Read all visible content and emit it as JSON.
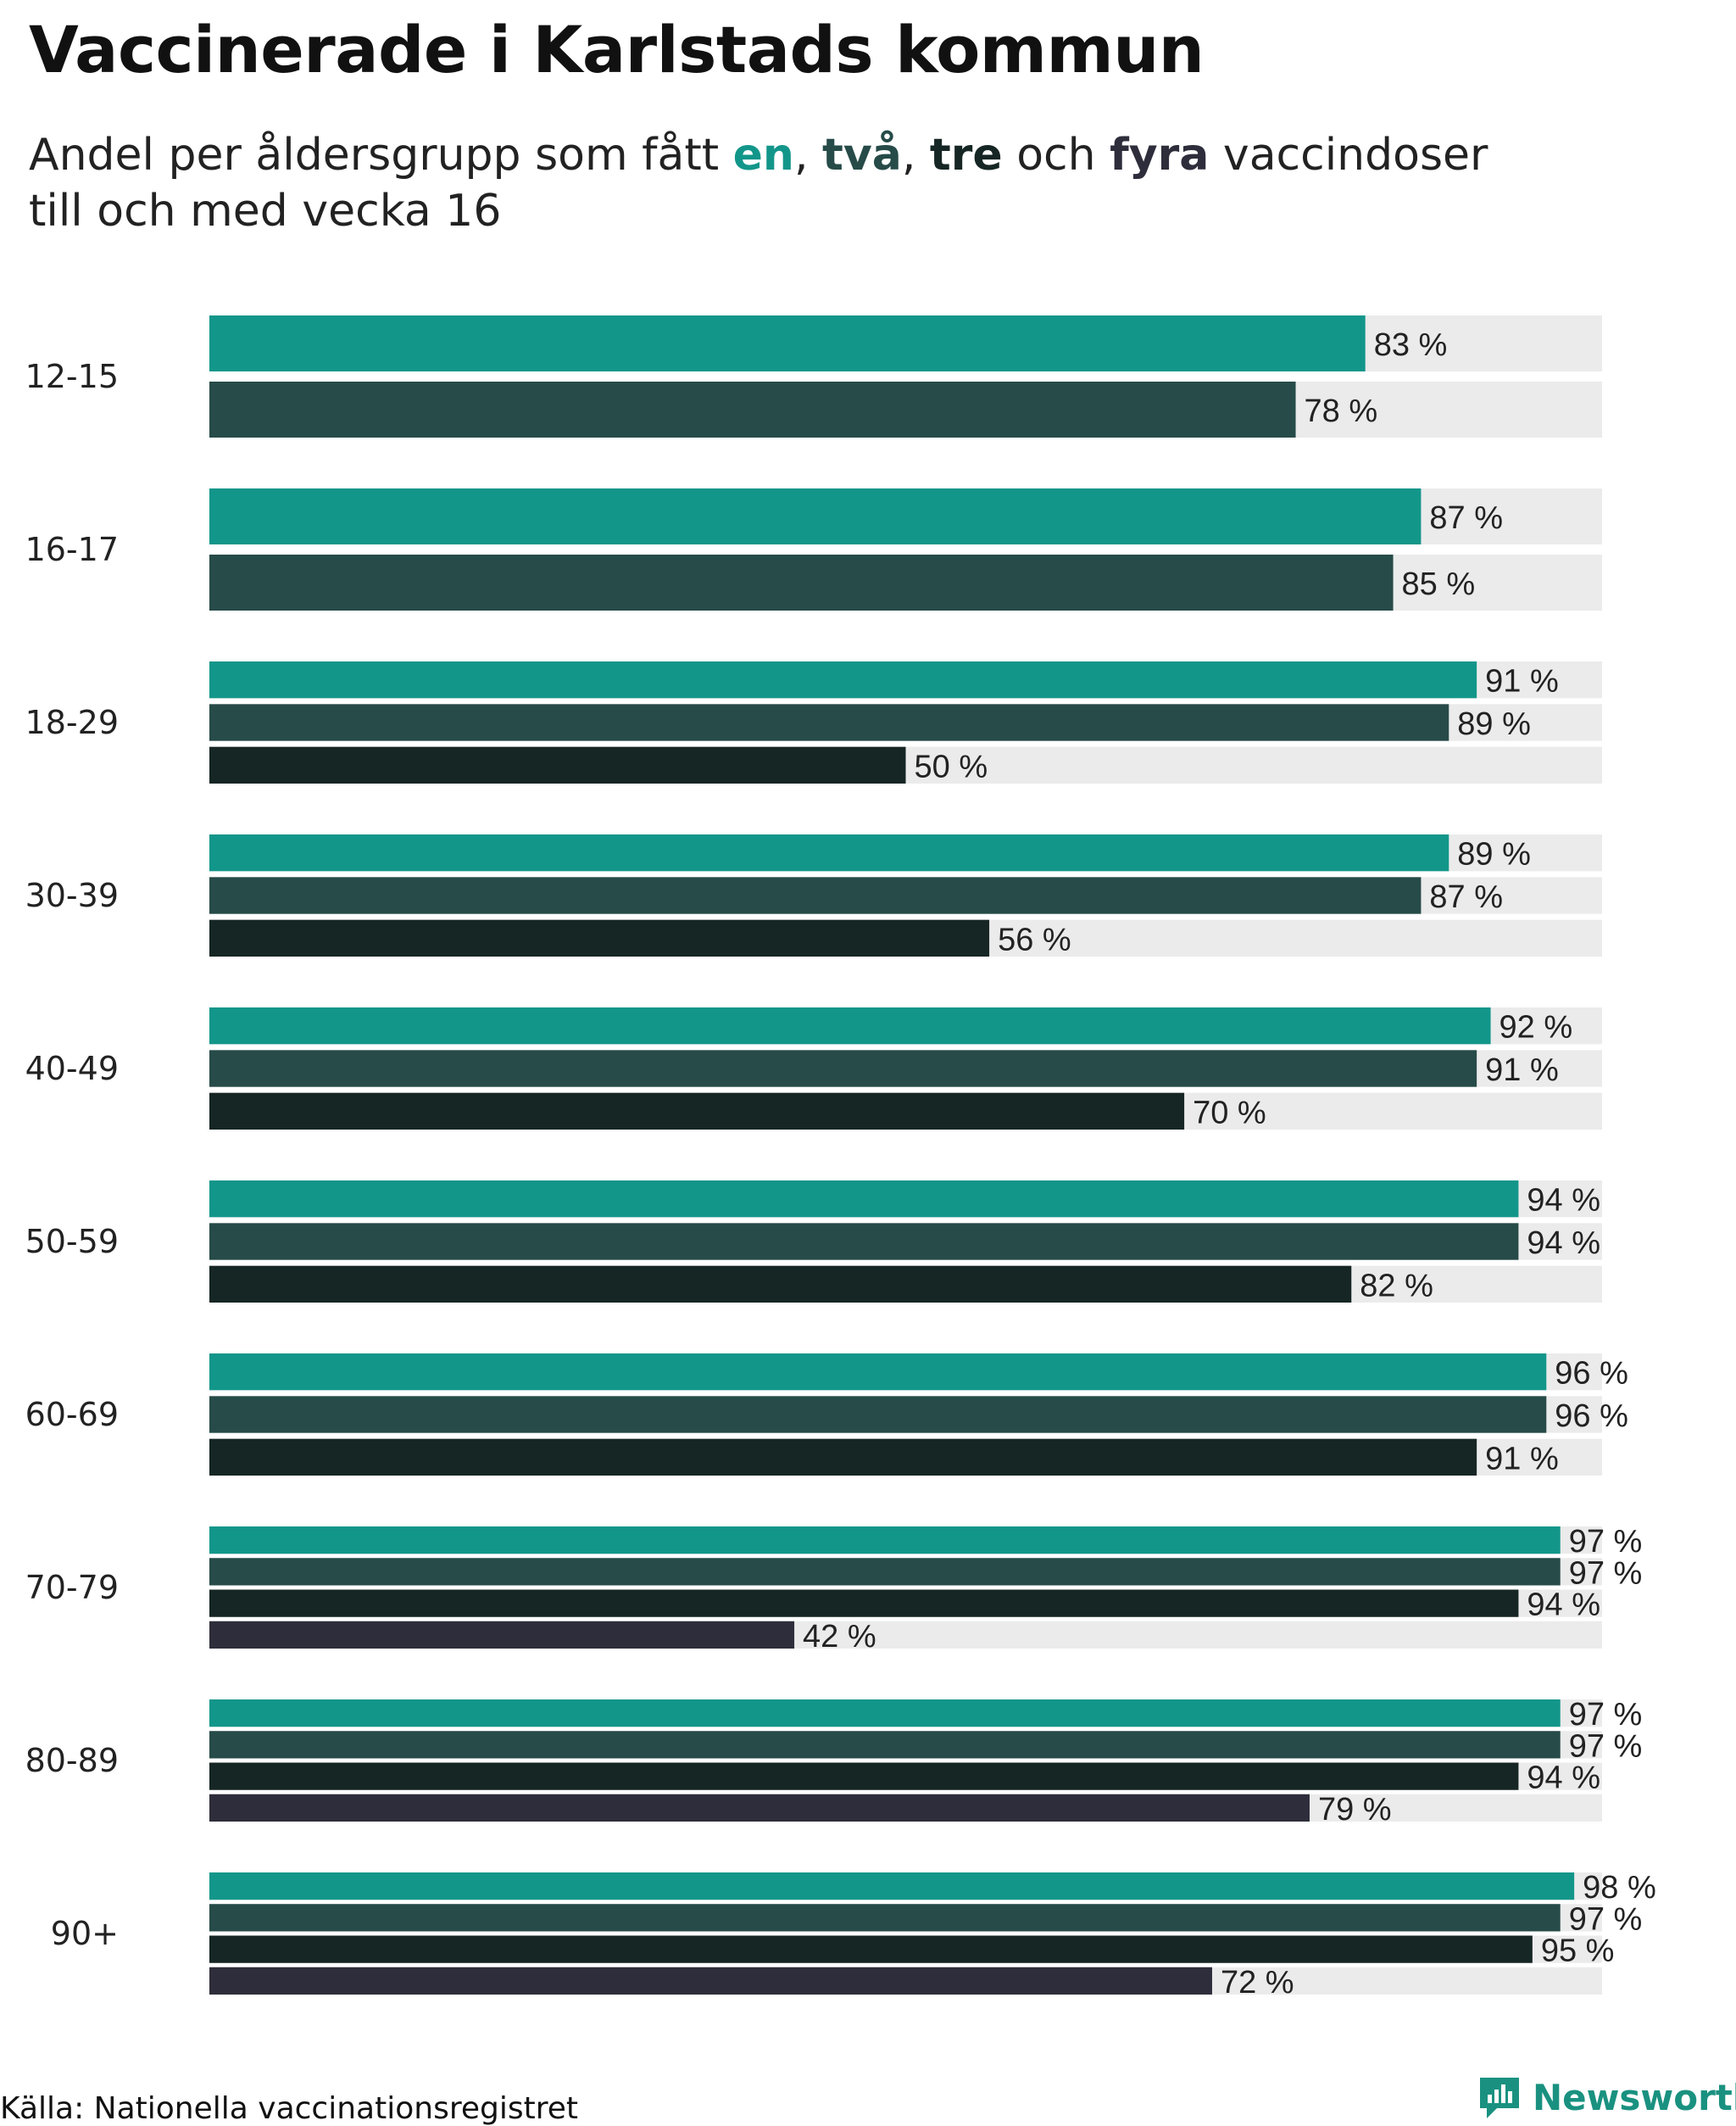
{
  "title": "Vaccinerade i Karlstads kommun",
  "subtitle": {
    "prefix": "Andel per åldersgrupp som fått ",
    "dose1": "en",
    "sep1": ", ",
    "dose2": "två",
    "sep2": ", ",
    "dose3": "tre",
    "middle": " och ",
    "dose4": "fyra",
    "suffix": " vaccindoser",
    "line2": "till och med vecka 16"
  },
  "source": "Källa: Nationella vaccinationsregistret",
  "logo": {
    "text": "Newsworthy",
    "icon": "newsworthy-logo-icon"
  },
  "colors": {
    "dose1": "#13968a",
    "dose2": "#264b48",
    "dose3": "#162624",
    "dose4": "#2e2d3b",
    "track": "#ebebeb",
    "brand": "#1a9180"
  },
  "chart_data": {
    "type": "bar",
    "orientation": "horizontal",
    "xlim": [
      0,
      100
    ],
    "unit": "%",
    "categories": [
      "12-15",
      "16-17",
      "18-29",
      "30-39",
      "40-49",
      "50-59",
      "60-69",
      "70-79",
      "80-89",
      "90+"
    ],
    "series": [
      {
        "name": "en",
        "values": [
          83,
          87,
          91,
          89,
          92,
          94,
          96,
          97,
          97,
          98
        ]
      },
      {
        "name": "två",
        "values": [
          78,
          85,
          89,
          87,
          91,
          94,
          96,
          97,
          97,
          97
        ]
      },
      {
        "name": "tre",
        "values": [
          null,
          null,
          50,
          56,
          70,
          82,
          91,
          94,
          94,
          95
        ]
      },
      {
        "name": "fyra",
        "values": [
          null,
          null,
          null,
          null,
          null,
          null,
          null,
          42,
          79,
          72
        ]
      }
    ]
  }
}
